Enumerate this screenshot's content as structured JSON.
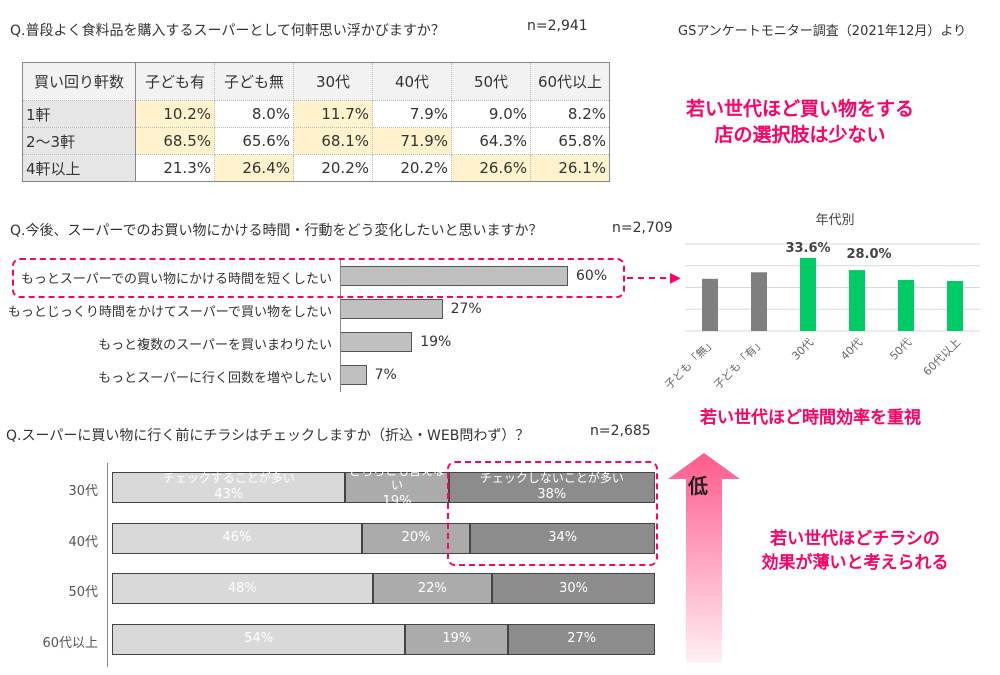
{
  "q1": {
    "title": "Q.普段よく食料品を購入するスーパーとして何軒思い浮かびますか？",
    "n": "n=2,941"
  },
  "source": "GSアンケートモニター調査（2021年12月）より",
  "table": {
    "headers": [
      "買い回り軒数",
      "子ども有",
      "子ども無",
      "30代",
      "40代",
      "50代",
      "60代以上"
    ],
    "rows": [
      {
        "label": "1軒",
        "values": [
          "10.2%",
          "8.0%",
          "11.7%",
          "7.9%",
          "9.0%",
          "8.2%"
        ],
        "highlight": [
          true,
          false,
          true,
          false,
          false,
          false
        ]
      },
      {
        "label": "2～3軒",
        "values": [
          "68.5%",
          "65.6%",
          "68.1%",
          "71.9%",
          "64.3%",
          "65.8%"
        ],
        "highlight": [
          true,
          false,
          true,
          true,
          false,
          false
        ]
      },
      {
        "label": "4軒以上",
        "values": [
          "21.3%",
          "26.4%",
          "20.2%",
          "20.2%",
          "26.6%",
          "26.1%"
        ],
        "highlight": [
          false,
          true,
          false,
          false,
          true,
          true
        ]
      }
    ]
  },
  "callout1": [
    "若い世代ほど買い物をする",
    "店の選択肢は少ない"
  ],
  "q2": {
    "title": "Q.今後、スーパーでのお買い物にかける時間・行動をどう変化したいと思いますか？",
    "n": "n=2,709"
  },
  "callout2": "若い世代ほど時間効率を重視",
  "callout3": [
    "若い世代ほどチラシの",
    "効果が薄いと考えられる"
  ],
  "arrow_label": "低",
  "q3": {
    "title": "Q.スーパーに買い物に行く前にチラシはチェックしますか（折込・WEB問わず）？",
    "n": "n=2,685"
  },
  "accent": "#ff0066",
  "chart_data": [
    {
      "type": "bar",
      "orientation": "horizontal",
      "categories": [
        "もっとスーパーでの買い物にかける時間を短くしたい",
        "もっとじっくり時間をかけてスーパーで買い物をしたい",
        "もっと複数のスーパーを買いまわりたい",
        "もっとスーパーに行く回数を増やしたい"
      ],
      "values": [
        60,
        27,
        19,
        7
      ],
      "labels": [
        "60%",
        "27%",
        "19%",
        "7%"
      ],
      "highlight_index": 0
    },
    {
      "type": "bar",
      "title": "年代別",
      "categories": [
        "子ども「無」",
        "子ども「有」",
        "30代",
        "40代",
        "50代",
        "60代以上"
      ],
      "values": [
        24,
        27,
        33.6,
        28.0,
        23.5,
        23
      ],
      "labels": [
        "",
        "",
        "33.6%",
        "28.0%",
        "",
        ""
      ],
      "colors": [
        "#7f7f7f",
        "#7f7f7f",
        "#00cc66",
        "#00cc66",
        "#00cc66",
        "#00cc66"
      ],
      "ylim": [
        0,
        40
      ],
      "grid": true
    },
    {
      "type": "bar",
      "stacked": true,
      "orientation": "horizontal",
      "categories": [
        "30代",
        "40代",
        "50代",
        "60代以上"
      ],
      "series": [
        {
          "name": "チェックすることが多い",
          "values": [
            43,
            46,
            48,
            54
          ],
          "color": "#d9d9d9"
        },
        {
          "name": "どちらとも言えない",
          "values": [
            19,
            20,
            22,
            19
          ],
          "color": "#ababab"
        },
        {
          "name": "チェックしないことが多い",
          "values": [
            38,
            34,
            30,
            27
          ],
          "color": "#8c8c8c"
        }
      ]
    }
  ]
}
